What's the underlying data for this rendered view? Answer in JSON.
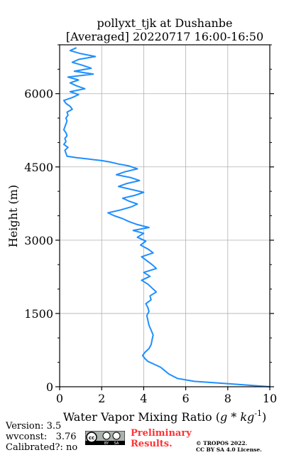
{
  "chart_data": {
    "type": "line",
    "title": "pollyxt_tjk at Dushanbe",
    "subtitle": "[Averaged] 20220717 16:00-16:50",
    "xlabel_text": "Water Vapor Mixing Ratio (",
    "xlabel_math": "g * kg",
    "xlabel_exp": "-1",
    "xlabel_close": ")",
    "ylabel": "Height (m)",
    "xlim": [
      0,
      10
    ],
    "ylim": [
      0,
      7000
    ],
    "xticks": [
      0,
      2,
      4,
      6,
      8,
      10
    ],
    "yticks": [
      0,
      1500,
      3000,
      4500,
      6000
    ],
    "grid": true,
    "series": [
      {
        "color": "#1f8fff",
        "x": [
          10.0,
          8.1,
          6.4,
          5.6,
          5.2,
          5.0,
          4.8,
          4.5,
          4.2,
          4.05,
          3.95,
          4.05,
          4.25,
          4.35,
          4.4,
          4.45,
          4.35,
          4.25,
          4.2,
          4.15,
          4.25,
          4.2,
          4.1,
          4.35,
          4.3,
          4.6,
          4.4,
          4.2,
          3.9,
          4.3,
          4.0,
          4.6,
          4.4,
          4.15,
          3.9,
          4.45,
          4.2,
          3.85,
          4.1,
          3.7,
          4.0,
          3.5,
          4.25,
          3.7,
          3.3,
          3.0,
          2.6,
          2.3,
          2.9,
          3.4,
          3.7,
          3.3,
          3.0,
          3.6,
          4.0,
          3.4,
          2.8,
          3.2,
          3.8,
          3.4,
          2.7,
          3.1,
          3.7,
          3.3,
          2.8,
          2.4,
          2.0,
          1.4,
          0.8,
          0.35,
          0.3,
          0.25,
          0.4,
          0.2,
          0.3,
          0.25,
          0.35,
          0.3,
          0.2,
          0.25,
          0.3,
          0.35,
          0.3,
          0.4,
          0.35,
          0.6,
          0.5,
          0.3,
          0.2,
          0.6,
          0.9,
          0.5,
          1.2,
          0.8,
          0.5,
          0.9,
          0.4,
          1.6,
          0.7,
          1.5,
          1.1,
          0.6,
          0.9,
          1.7,
          1.0,
          0.5,
          0.8
        ],
        "y": [
          0,
          60,
          110,
          170,
          260,
          330,
          400,
          460,
          520,
          580,
          640,
          700,
          780,
          860,
          960,
          1060,
          1160,
          1260,
          1360,
          1460,
          1540,
          1620,
          1700,
          1780,
          1860,
          1940,
          2020,
          2100,
          2180,
          2260,
          2340,
          2420,
          2500,
          2580,
          2660,
          2740,
          2820,
          2900,
          2980,
          3060,
          3140,
          3200,
          3260,
          3320,
          3380,
          3440,
          3500,
          3560,
          3620,
          3680,
          3740,
          3800,
          3860,
          3920,
          3980,
          4040,
          4100,
          4160,
          4220,
          4280,
          4340,
          4400,
          4460,
          4520,
          4560,
          4600,
          4630,
          4660,
          4690,
          4720,
          4780,
          4840,
          4900,
          4960,
          5020,
          5080,
          5140,
          5200,
          5260,
          5320,
          5380,
          5440,
          5500,
          5560,
          5620,
          5680,
          5740,
          5800,
          5860,
          5920,
          5980,
          6040,
          6100,
          6160,
          6220,
          6280,
          6340,
          6400,
          6460,
          6520,
          6580,
          6640,
          6700,
          6760,
          6820,
          6880,
          6940
        ]
      }
    ]
  },
  "footer": {
    "version": "Version: 3.5",
    "wvconst": "wvconst:   3.76",
    "calibrated": "Calibrated?: no",
    "preliminary_line1": "Preliminary",
    "preliminary_line2": "Results.",
    "copyright_line1": "© TROPOS 2022.",
    "copyright_line2": "CC BY SA 4.0 License.",
    "badge_text": "cc",
    "badge_by": "BY",
    "badge_sa": "SA"
  }
}
